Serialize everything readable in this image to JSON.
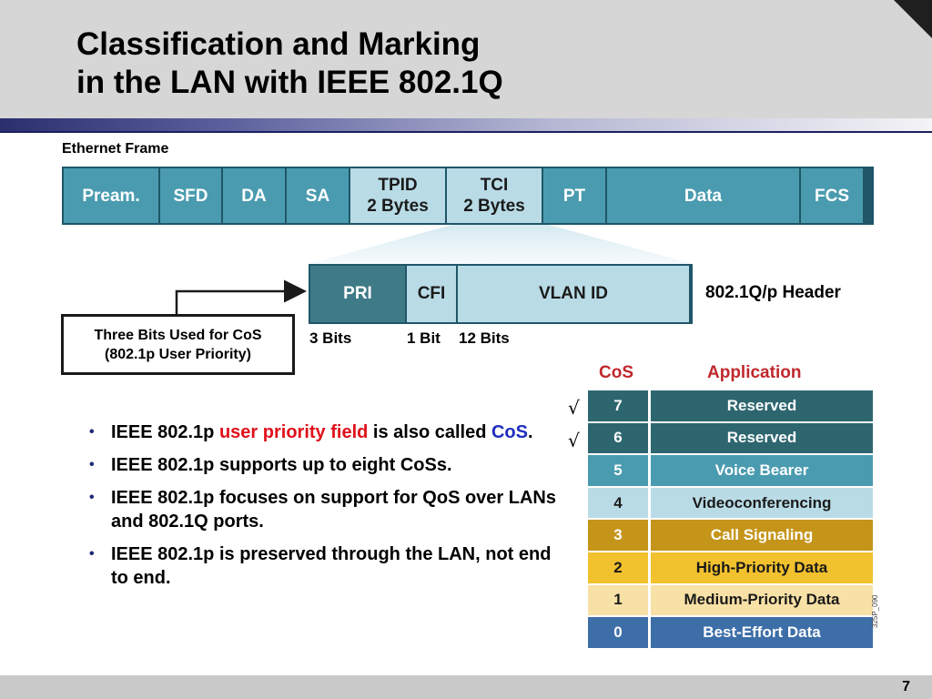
{
  "title": {
    "line1": "Classification and Marking",
    "line2": "in the LAN with IEEE 802.1Q"
  },
  "ethernet_frame": {
    "label": "Ethernet Frame",
    "fields": [
      {
        "line1": "Pream.",
        "line2": ""
      },
      {
        "line1": "SFD",
        "line2": ""
      },
      {
        "line1": "DA",
        "line2": ""
      },
      {
        "line1": "SA",
        "line2": ""
      },
      {
        "line1": "TPID",
        "line2": "2 Bytes"
      },
      {
        "line1": "TCI",
        "line2": "2 Bytes"
      },
      {
        "line1": "PT",
        "line2": ""
      },
      {
        "line1": "Data",
        "line2": ""
      },
      {
        "line1": "FCS",
        "line2": ""
      }
    ]
  },
  "dot1q": {
    "label": "802.1Q/p Header",
    "fields": [
      "PRI",
      "CFI",
      "VLAN ID"
    ],
    "bits": [
      "3 Bits",
      "1 Bit",
      "12 Bits"
    ]
  },
  "callout": {
    "line1": "Three Bits Used for CoS",
    "line2": "(802.1p User Priority)"
  },
  "bullets": {
    "b1": {
      "pre": "IEEE 802.1p ",
      "red": "user priority field",
      "mid": " is also called ",
      "blue": "CoS",
      "post": "."
    },
    "b2": "IEEE 802.1p supports up to eight CoSs.",
    "b3": "IEEE 802.1p focuses on support for QoS over LANs and 802.1Q ports.",
    "b4": "IEEE 802.1p is preserved through the LAN, not end to end."
  },
  "cos_table": {
    "header_cos": "CoS",
    "header_app": "Application",
    "check_symbol": "√",
    "rows": [
      {
        "cos": "7",
        "app": "Reserved",
        "checked": true,
        "bg": "#2e6670",
        "fg": "#ffffff"
      },
      {
        "cos": "6",
        "app": "Reserved",
        "checked": true,
        "bg": "#2e6670",
        "fg": "#ffffff"
      },
      {
        "cos": "5",
        "app": "Voice Bearer",
        "checked": false,
        "bg": "#4a9bb0",
        "fg": "#ffffff"
      },
      {
        "cos": "4",
        "app": "Videoconferencing",
        "checked": false,
        "bg": "#b9dbe6",
        "fg": "#1a1a1a"
      },
      {
        "cos": "3",
        "app": "Call Signaling",
        "checked": false,
        "bg": "#c5951a",
        "fg": "#ffffff"
      },
      {
        "cos": "2",
        "app": "High-Priority Data",
        "checked": false,
        "bg": "#f2c12e",
        "fg": "#1a1a1a"
      },
      {
        "cos": "1",
        "app": "Medium-Priority Data",
        "checked": false,
        "bg": "#f8e1a6",
        "fg": "#1a1a1a"
      },
      {
        "cos": "0",
        "app": "Best-Effort Data",
        "checked": false,
        "bg": "#3d6ea8",
        "fg": "#ffffff"
      }
    ]
  },
  "figure_code": "325P_090",
  "page_number": "7"
}
